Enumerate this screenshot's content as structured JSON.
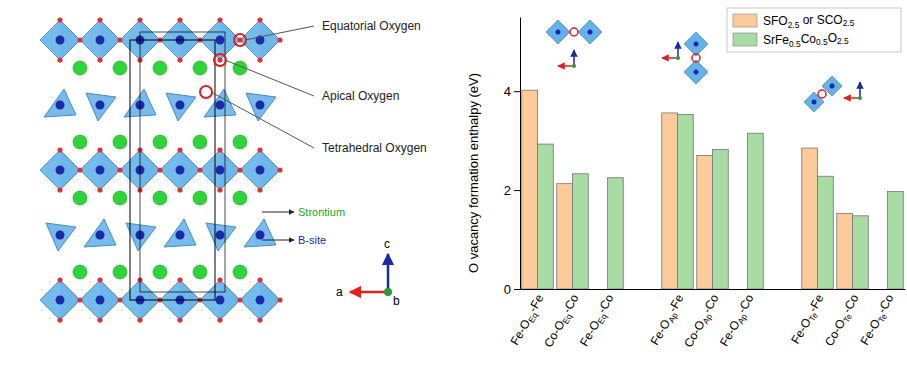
{
  "chart_data": {
    "type": "bar",
    "ylabel": "O vacancy formation enthalpy (eV)",
    "categories": [
      "Fe-OEq-Fe",
      "Co-OEq-Co",
      "Fe-OEq-Co",
      null,
      "Fe-OAp-Fe",
      "Co-OAp-Co",
      "Fe-OAp-Co",
      null,
      "Fe-OTe-Fe",
      "Co-OTe-Co",
      "Fe-OTe-Co"
    ],
    "series": [
      {
        "name": "SFO2.5 or SCO2.5",
        "color": "#fccb9c",
        "values": [
          4.02,
          2.13,
          null,
          null,
          3.56,
          2.7,
          null,
          null,
          2.85,
          1.53,
          null
        ]
      },
      {
        "name": "SrFe0.5Co0.5O2.5",
        "color": "#a9dba5",
        "values": [
          2.93,
          2.33,
          2.25,
          null,
          3.53,
          2.82,
          3.15,
          null,
          2.28,
          1.48,
          1.97
        ]
      }
    ],
    "ylim": [
      0,
      5.5
    ],
    "yticks": [
      0,
      2,
      4
    ],
    "legend": "upper right"
  },
  "diagram": {
    "labels": [
      "Equatorial Oxygen",
      "Apical Oxygen",
      "Tetrahedral Oxygen",
      "Strontium",
      "B-site"
    ],
    "axes": [
      "a",
      "b",
      "c"
    ]
  }
}
